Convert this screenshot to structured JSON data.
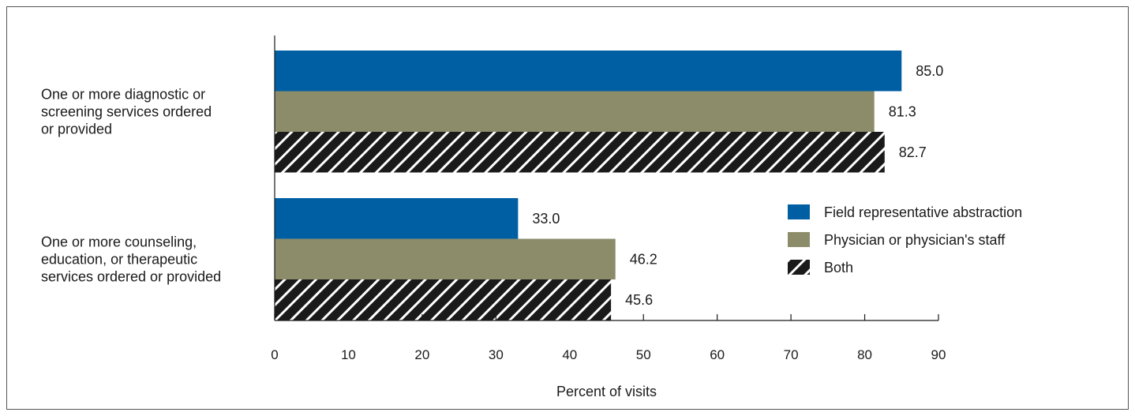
{
  "chart_data": {
    "type": "bar",
    "orientation": "horizontal",
    "categories": [
      [
        "One or more diagnostic or",
        "screening services ordered",
        "or provided"
      ],
      [
        "One or more counseling,",
        "education, or therapeutic",
        "services ordered or provided"
      ]
    ],
    "series": [
      {
        "name": "Field representative abstraction",
        "values": [
          85.0,
          33.0
        ],
        "color": "#005fa3",
        "pattern": "solid"
      },
      {
        "name": "Physician or physician's staff",
        "values": [
          81.3,
          46.2
        ],
        "color": "#8c8c6a",
        "pattern": "solid"
      },
      {
        "name": "Both",
        "values": [
          82.7,
          45.6
        ],
        "color": "#1a1a1a",
        "pattern": "diagonal-hatch"
      }
    ],
    "value_labels": [
      [
        "85.0",
        "33.0"
      ],
      [
        "81.3",
        "46.2"
      ],
      [
        "82.7",
        "45.6"
      ]
    ],
    "xlabel": "Percent of visits",
    "ylabel": "",
    "xlim": [
      0,
      90
    ],
    "xticks": [
      0,
      10,
      20,
      30,
      40,
      50,
      60,
      70,
      80,
      90
    ],
    "grid": false,
    "legend_position": "right"
  }
}
